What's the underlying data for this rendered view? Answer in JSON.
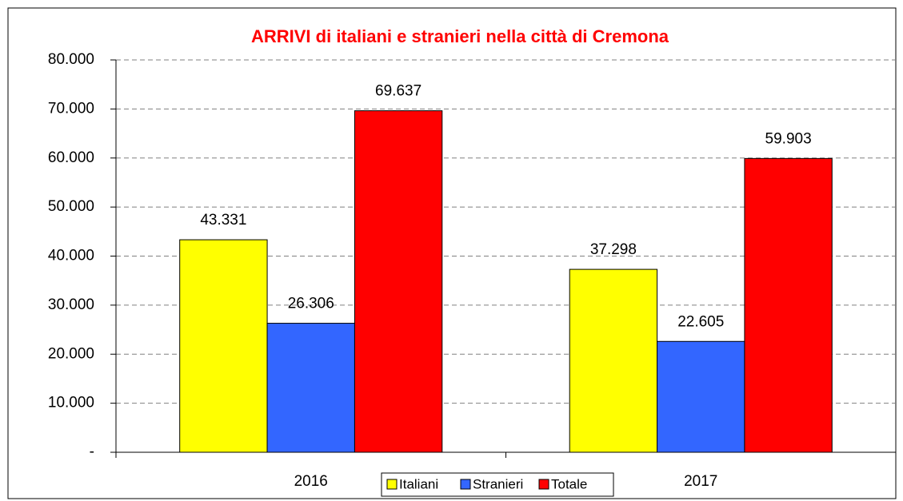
{
  "chart_data": {
    "type": "bar",
    "title": "ARRIVI di italiani e stranieri nella città di Cremona",
    "categories": [
      "2016",
      "2017"
    ],
    "series": [
      {
        "name": "Italiani",
        "color": "#ffff00",
        "values": [
          43331,
          37298
        ],
        "value_labels": [
          "43.331",
          "37.298"
        ]
      },
      {
        "name": "Stranieri",
        "color": "#3366ff",
        "values": [
          26306,
          22605
        ],
        "value_labels": [
          "26.306",
          "22.605"
        ]
      },
      {
        "name": "Totale",
        "color": "#ff0000",
        "values": [
          69637,
          59903
        ],
        "value_labels": [
          "69.637",
          "59.903"
        ]
      }
    ],
    "ylim": [
      0,
      80000
    ],
    "yticks": [
      {
        "value": 0,
        "label": "-"
      },
      {
        "value": 10000,
        "label": "10.000"
      },
      {
        "value": 20000,
        "label": "20.000"
      },
      {
        "value": 30000,
        "label": "30.000"
      },
      {
        "value": 40000,
        "label": "40.000"
      },
      {
        "value": 50000,
        "label": "50.000"
      },
      {
        "value": 60000,
        "label": "60.000"
      },
      {
        "value": 70000,
        "label": "70.000"
      },
      {
        "value": 80000,
        "label": "80.000"
      }
    ],
    "grid": true,
    "legend": "bottom"
  }
}
